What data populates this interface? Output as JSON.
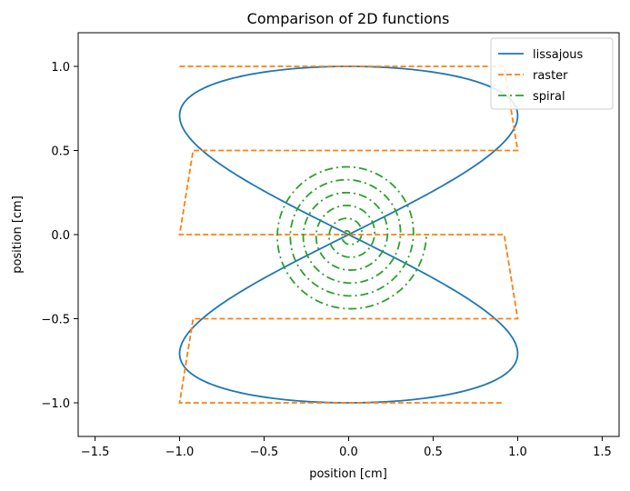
{
  "chart_data": {
    "type": "line",
    "title": "Comparison of 2D functions",
    "xlabel": "position [cm]",
    "ylabel": "position [cm]",
    "xlim": [
      -1.6,
      1.6
    ],
    "ylim": [
      -1.2,
      1.2
    ],
    "xticks": [
      -1.5,
      -1.0,
      -0.5,
      0.0,
      0.5,
      1.0,
      1.5
    ],
    "xtick_labels": [
      "−1.5",
      "−1.0",
      "−0.5",
      "0.0",
      "0.5",
      "1.0",
      "1.5"
    ],
    "yticks": [
      -1.0,
      -0.5,
      0.0,
      0.5,
      1.0
    ],
    "ytick_labels": [
      "−1.0",
      "−0.5",
      "0.0",
      "0.5",
      "1.0"
    ],
    "grid": false,
    "legend_position": "top-right",
    "series": [
      {
        "name": "lissajous",
        "color": "#1f77b4",
        "style": "solid",
        "description_points": "x = sin(2t), y = cos(t)",
        "x": [
          0.0,
          0.309,
          0.588,
          0.809,
          0.951,
          1.0,
          0.951,
          0.809,
          0.588,
          0.309,
          0.0,
          -0.309,
          -0.588,
          -0.809,
          -0.951,
          -1.0,
          -0.951,
          -0.809,
          -0.588,
          -0.309,
          0.0,
          0.309,
          0.588,
          0.809,
          0.951,
          1.0,
          0.951,
          0.809,
          0.588,
          0.309,
          0.0,
          -0.309,
          -0.588,
          -0.809,
          -0.951,
          -1.0,
          -0.951,
          -0.809,
          -0.588,
          -0.309,
          0.0
        ],
        "y": [
          1.0,
          0.988,
          0.951,
          0.891,
          0.809,
          0.707,
          0.588,
          0.454,
          0.309,
          0.156,
          0.0,
          -0.156,
          -0.309,
          -0.454,
          -0.588,
          -0.707,
          -0.809,
          -0.891,
          -0.951,
          -0.988,
          -1.0,
          -0.988,
          -0.951,
          -0.891,
          -0.809,
          -0.707,
          -0.588,
          -0.454,
          -0.309,
          -0.156,
          0.0,
          0.156,
          0.309,
          0.454,
          0.588,
          0.707,
          0.809,
          0.891,
          0.951,
          0.988,
          1.0
        ]
      },
      {
        "name": "raster",
        "color": "#ff7f0e",
        "style": "dashed",
        "x": [
          -1.0,
          0.92,
          1.0,
          -0.92,
          -1.0,
          0.92,
          1.0,
          -0.92,
          -1.0,
          0.92
        ],
        "y": [
          1.0,
          1.0,
          0.5,
          0.5,
          0.0,
          0.0,
          -0.5,
          -0.5,
          -1.0,
          -1.0
        ]
      },
      {
        "name": "spiral",
        "color": "#2ca02c",
        "style": "dashdot",
        "r_max": 0.46,
        "turns": 6
      }
    ]
  }
}
